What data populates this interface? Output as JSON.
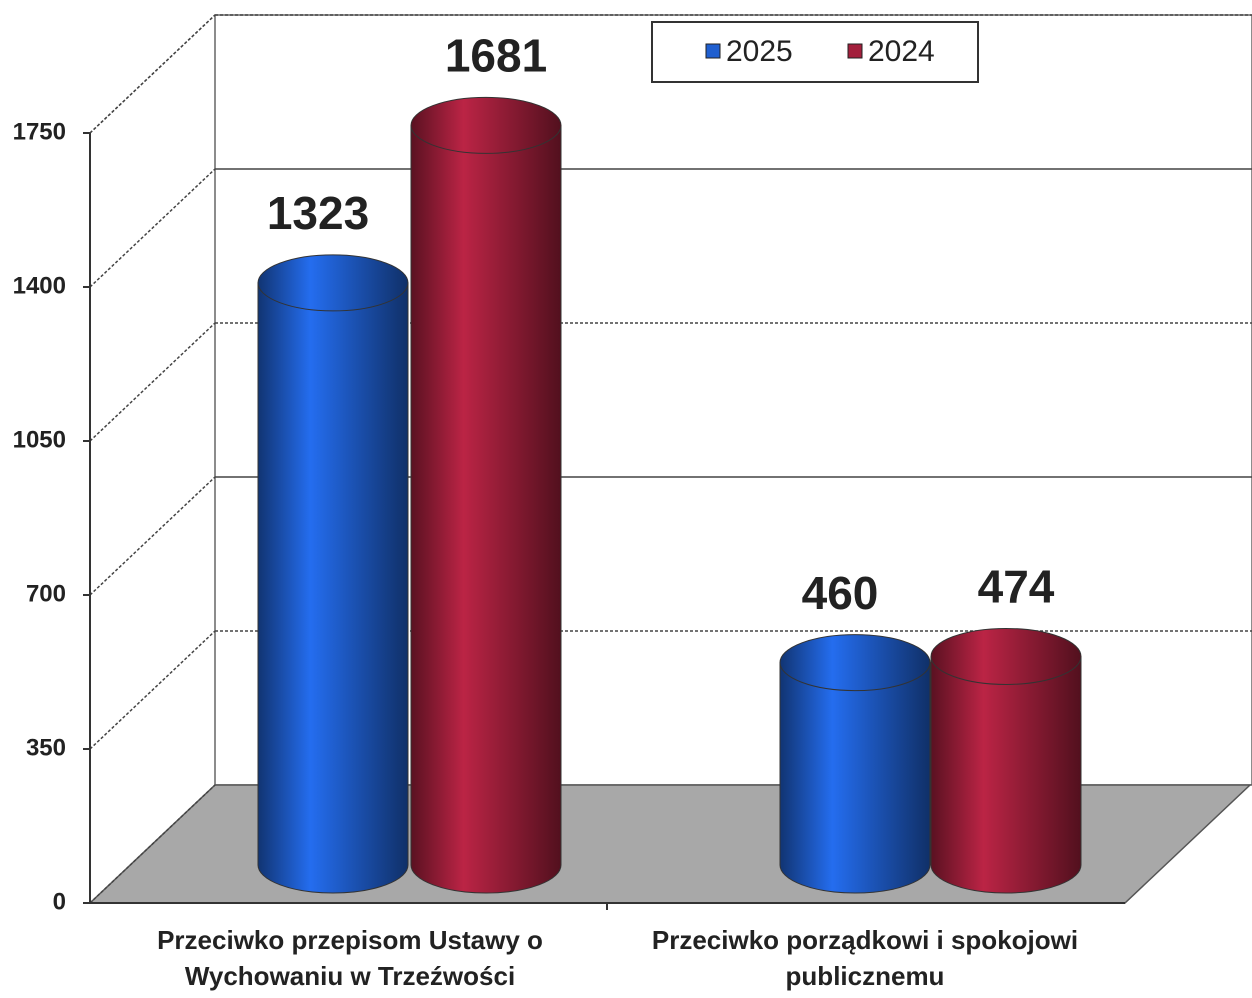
{
  "chart_data": {
    "type": "cylinder",
    "categories": [
      "Przeciwko przepisom Ustawy o Wychowaniu w Trzeźwości",
      "Przeciwko porządkowi i spokojowi publicznemu"
    ],
    "series": [
      {
        "name": "2025",
        "color": "#1f5fd0",
        "values": [
          1323,
          460
        ]
      },
      {
        "name": "2024",
        "color": "#a31f3c",
        "values": [
          1681,
          474
        ]
      }
    ],
    "ylim": [
      0,
      1750
    ],
    "yticks": [
      0,
      350,
      700,
      1050,
      1400,
      1750
    ],
    "grid": true
  }
}
